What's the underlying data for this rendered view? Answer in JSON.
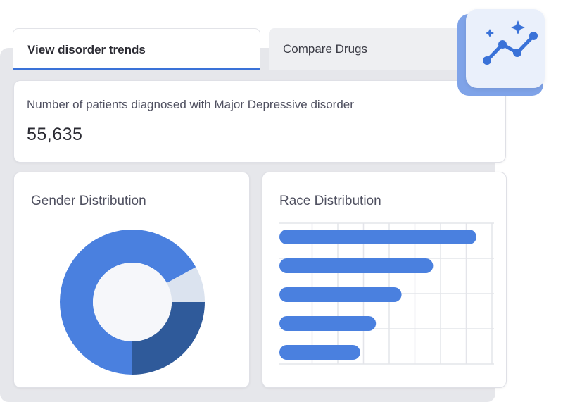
{
  "tabs": [
    {
      "label": "View disorder trends",
      "active": true
    },
    {
      "label": "Compare Drugs",
      "active": false
    }
  ],
  "stat": {
    "label": "Number of patients diagnosed with Major Depressive disorder",
    "value": "55,635"
  },
  "gender_card": {
    "title": "Gender Distribution"
  },
  "race_card": {
    "title": "Race Distribution"
  },
  "badge": {
    "icon": "trend-sparkle-icon"
  },
  "colors": {
    "accent": "#3a72d8",
    "bar": "#4a80df",
    "donut_primary": "#4a80df",
    "donut_dark": "#2f5a9a",
    "donut_light": "#dbe3ef"
  },
  "chart_data": [
    {
      "type": "pie",
      "variant": "donut",
      "slices": [
        {
          "value": 67,
          "color": "#4a80df"
        },
        {
          "value": 25,
          "color": "#2f5a9a"
        },
        {
          "value": 8,
          "color": "#dbe3ef"
        }
      ]
    },
    {
      "type": "bar",
      "orientation": "horizontal",
      "values": [
        100,
        78,
        62,
        49,
        41
      ],
      "grid": true
    }
  ]
}
